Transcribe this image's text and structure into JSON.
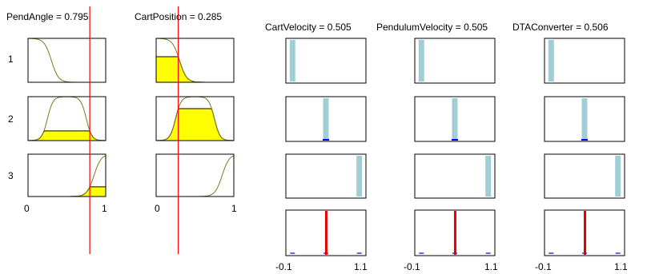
{
  "inputs": [
    {
      "name": "PendAngle",
      "value": "0.795",
      "title": "PendAngle = 0.795",
      "accent": "#d9d900"
    },
    {
      "name": "CartPosition",
      "value": "0.285",
      "title": "CartPosition = 0.285",
      "accent": "#d9d900"
    }
  ],
  "outputs": [
    {
      "name": "CartVelocity",
      "value": "0.505",
      "title": "CartVelocity = 0.505"
    },
    {
      "name": "PendulumVelocity",
      "value": "0.505",
      "title": "PendulumVelocity = 0.505"
    },
    {
      "name": "DTAConverter",
      "value": "0.506",
      "title": "DTAConverter = 0.506"
    }
  ],
  "rule_numbers": [
    "1",
    "2",
    "3"
  ],
  "input_axis": {
    "min": "0",
    "max": "1"
  },
  "output_axis": {
    "min": "-0.1",
    "max": "1.1"
  },
  "colors": {
    "mf_line": "#7a7a20",
    "fill": "#ffff00",
    "singleton": "#9fcfd4",
    "marker": "#ff0000",
    "aggregate": "#e60000",
    "tick_blue": "#0000ff",
    "frame": "#000000"
  }
}
